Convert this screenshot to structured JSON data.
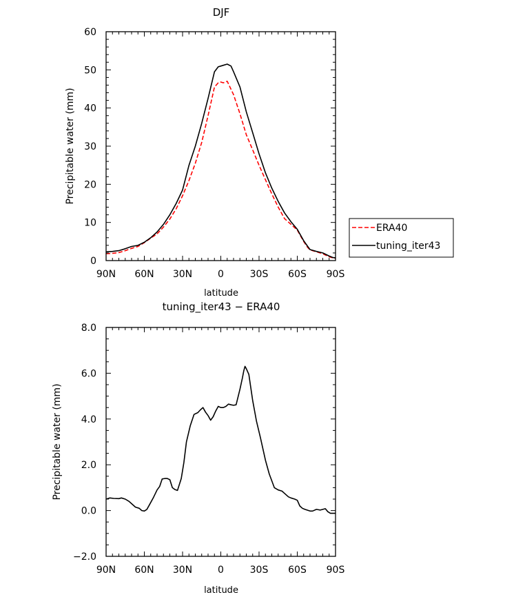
{
  "chart_data": [
    {
      "type": "line",
      "title": "DJF",
      "xlabel": "latitude",
      "ylabel": "Precipitable water (mm)",
      "xlim": [
        90,
        -90
      ],
      "ylim": [
        0,
        60
      ],
      "x_tick_values": [
        90,
        60,
        30,
        0,
        -30,
        -60,
        -90
      ],
      "x_tick_labels": [
        "90N",
        "60N",
        "30N",
        "0",
        "30S",
        "60S",
        "90S"
      ],
      "y_tick_values": [
        0,
        10,
        20,
        30,
        40,
        50,
        60
      ],
      "y_tick_labels": [
        "0",
        "10",
        "20",
        "30",
        "40",
        "50",
        "60"
      ],
      "grid": false,
      "legend": "right, outside plot",
      "series": [
        {
          "name": "ERA40",
          "color": "#ff0000",
          "dash": "dashed",
          "x": [
            90,
            85,
            80,
            75,
            70,
            65,
            60,
            55,
            50,
            45,
            40,
            35,
            30,
            25,
            20,
            15,
            10,
            5,
            2,
            0,
            -2,
            -5,
            -10,
            -15,
            -20,
            -25,
            -30,
            -35,
            -40,
            -45,
            -50,
            -55,
            -60,
            -65,
            -68,
            -70,
            -75,
            -80,
            -85,
            -88,
            -90
          ],
          "y": [
            1.8,
            1.9,
            2.1,
            2.6,
            3.2,
            3.7,
            4.7,
            5.9,
            7.0,
            8.8,
            10.9,
            13.6,
            17.0,
            21.0,
            25.5,
            31.0,
            38.0,
            45.5,
            46.6,
            46.8,
            46.6,
            47.0,
            43.5,
            38.5,
            33.0,
            29.0,
            25.0,
            21.2,
            17.5,
            14.0,
            11.0,
            9.5,
            8.0,
            5.0,
            3.5,
            2.8,
            2.3,
            1.8,
            1.0,
            0.7,
            0.6
          ]
        },
        {
          "name": "tuning_iter43",
          "color": "#000000",
          "dash": "solid",
          "x": [
            90,
            85,
            80,
            75,
            70,
            65,
            60,
            55,
            50,
            45,
            40,
            35,
            30,
            25,
            20,
            15,
            10,
            5,
            2,
            0,
            -2,
            -5,
            -8,
            -10,
            -15,
            -20,
            -25,
            -30,
            -35,
            -40,
            -45,
            -50,
            -55,
            -60,
            -65,
            -68,
            -70,
            -75,
            -80,
            -85,
            -88,
            -90
          ],
          "y": [
            2.3,
            2.4,
            2.6,
            3.1,
            3.7,
            4.0,
            4.8,
            6.0,
            7.5,
            9.5,
            12.0,
            15.0,
            18.5,
            25.0,
            30.0,
            36.0,
            42.5,
            49.5,
            50.8,
            51.0,
            51.2,
            51.5,
            51.0,
            49.5,
            45.5,
            39.0,
            33.5,
            28.0,
            23.0,
            19.0,
            15.5,
            12.5,
            10.2,
            8.2,
            5.2,
            3.8,
            2.9,
            2.4,
            2.0,
            1.2,
            0.8,
            0.7
          ]
        }
      ]
    },
    {
      "type": "line",
      "title": "tuning_iter43 − ERA40",
      "xlabel": "latitude",
      "ylabel": "Precipitable water (mm)",
      "xlim": [
        90,
        -90
      ],
      "ylim": [
        -2.0,
        8.0
      ],
      "x_tick_values": [
        90,
        60,
        30,
        0,
        -30,
        -60,
        -90
      ],
      "x_tick_labels": [
        "90N",
        "60N",
        "30N",
        "0",
        "30S",
        "60S",
        "90S"
      ],
      "y_tick_values": [
        -2.0,
        0.0,
        2.0,
        4.0,
        6.0,
        8.0
      ],
      "y_tick_labels": [
        "−2.0",
        "0.0",
        "2.0",
        "4.0",
        "6.0",
        "8.0"
      ],
      "grid": false,
      "series": [
        {
          "color": "#000000",
          "dash": "solid",
          "x": [
            90,
            87,
            84,
            80,
            78,
            75,
            72,
            70,
            67,
            64,
            62,
            60,
            58,
            56,
            53,
            50,
            48,
            46,
            44,
            42,
            40,
            38,
            36,
            34,
            31,
            29,
            27,
            24,
            21,
            18,
            16,
            14,
            12,
            10,
            8,
            6,
            4,
            2,
            0,
            -2,
            -4,
            -6,
            -8,
            -10,
            -12,
            -15,
            -17,
            -18,
            -19,
            -20,
            -22,
            -25,
            -28,
            -31,
            -35,
            -38,
            -40,
            -42,
            -45,
            -48,
            -50,
            -53,
            -55,
            -58,
            -60,
            -62,
            -64,
            -66,
            -70,
            -72,
            -75,
            -78,
            -80,
            -82,
            -84,
            -86,
            -90
          ],
          "y": [
            0.5,
            0.55,
            0.53,
            0.52,
            0.55,
            0.5,
            0.4,
            0.3,
            0.15,
            0.1,
            0.0,
            -0.02,
            0.05,
            0.25,
            0.55,
            0.9,
            1.05,
            1.38,
            1.4,
            1.4,
            1.35,
            1.0,
            0.92,
            0.88,
            1.4,
            2.1,
            3.0,
            3.7,
            4.2,
            4.28,
            4.4,
            4.5,
            4.3,
            4.15,
            3.95,
            4.1,
            4.35,
            4.55,
            4.5,
            4.5,
            4.55,
            4.65,
            4.62,
            4.6,
            4.62,
            5.3,
            5.8,
            6.1,
            6.3,
            6.2,
            5.95,
            4.8,
            3.9,
            3.2,
            2.2,
            1.6,
            1.3,
            1.0,
            0.9,
            0.85,
            0.75,
            0.6,
            0.55,
            0.5,
            0.45,
            0.2,
            0.1,
            0.05,
            -0.02,
            -0.02,
            0.05,
            0.02,
            0.05,
            0.08,
            -0.05,
            -0.12,
            -0.12
          ]
        }
      ]
    }
  ]
}
